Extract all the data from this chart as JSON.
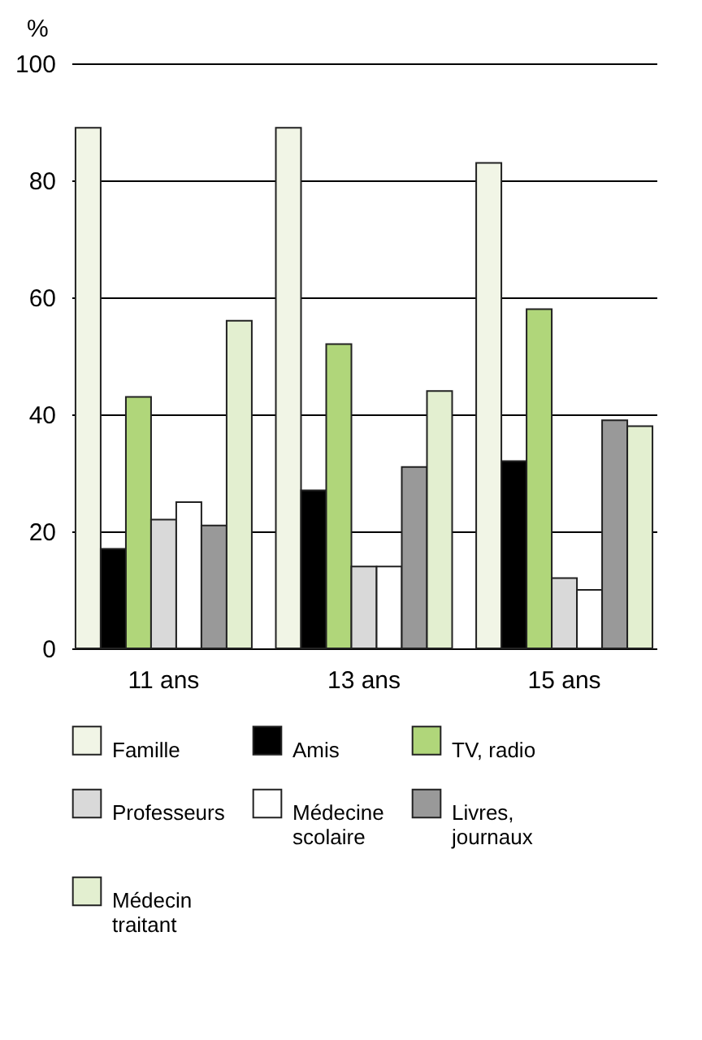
{
  "chart_data": {
    "type": "bar",
    "ylabel": "%",
    "categories": [
      "11 ans",
      "13 ans",
      "15 ans"
    ],
    "series": [
      {
        "name": "Famille",
        "color": "#f1f5e6",
        "values": [
          89,
          89,
          83
        ]
      },
      {
        "name": "Amis",
        "color": "#000000",
        "values": [
          17,
          27,
          32
        ]
      },
      {
        "name": "TV, radio",
        "color": "#b0d67a",
        "values": [
          43,
          52,
          58
        ]
      },
      {
        "name": "Professeurs",
        "color": "#d9d9d9",
        "values": [
          22,
          14,
          12
        ]
      },
      {
        "name": "Médecine scolaire",
        "color": "#ffffff",
        "values": [
          25,
          14,
          10
        ]
      },
      {
        "name": "Livres, journaux",
        "color": "#999999",
        "values": [
          21,
          31,
          39
        ]
      },
      {
        "name": "Médecin traitant",
        "color": "#e3efd0",
        "values": [
          56,
          44,
          38
        ]
      }
    ],
    "ylim": [
      0,
      100
    ],
    "yticks": [
      0,
      20,
      40,
      60,
      80,
      100
    ],
    "grid": "y",
    "legend": "bottom"
  }
}
